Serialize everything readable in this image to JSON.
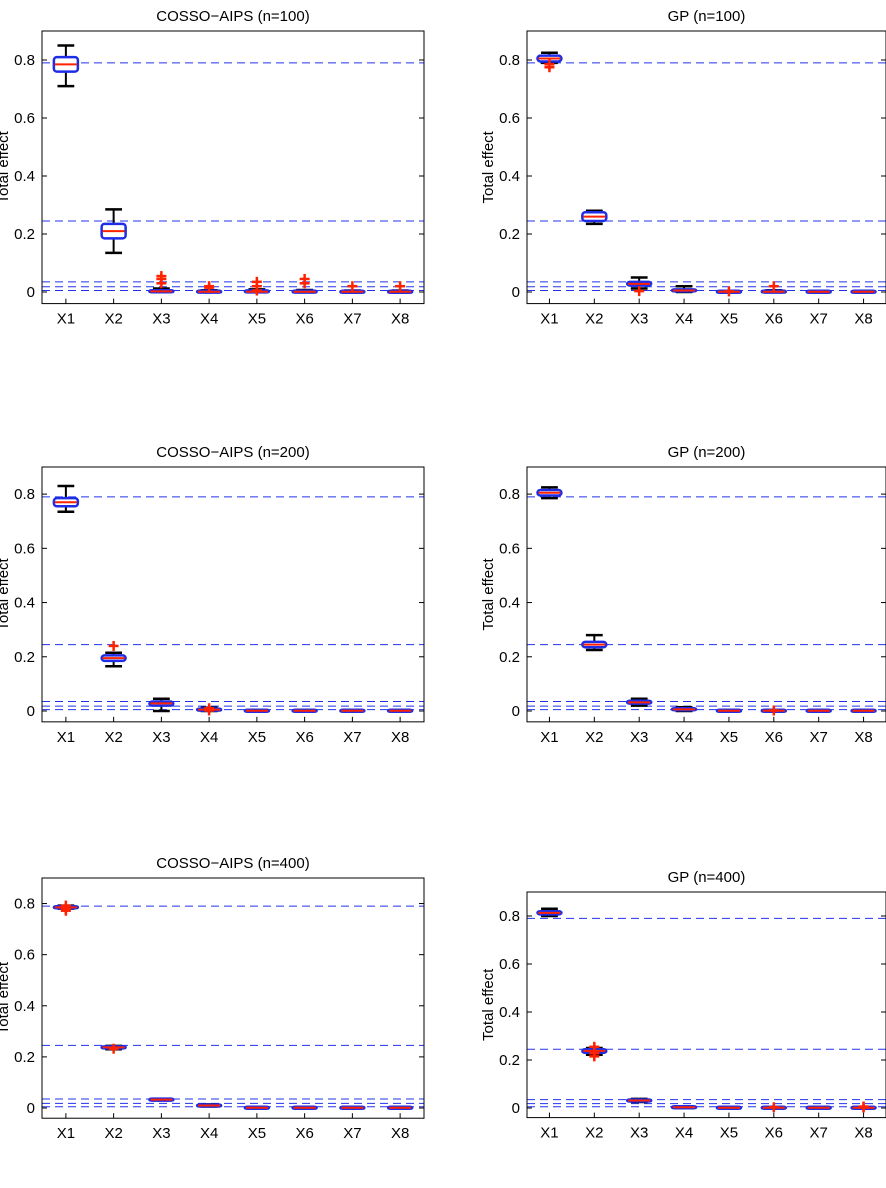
{
  "colors": {
    "box": "#1f2ee6",
    "median": "#ff2200",
    "whisker": "#000000",
    "outlier": "#ff2200",
    "reference": "#2233ee",
    "axis": "#000000"
  },
  "chart_data": [
    {
      "type": "box",
      "title": "COSSO−AIPS (n=100)",
      "ylabel": "Total effect",
      "categories": [
        "X1",
        "X2",
        "X3",
        "X4",
        "X5",
        "X6",
        "X7",
        "X8"
      ],
      "ylim": [
        -0.04,
        0.9
      ],
      "yticks": [
        "0",
        "0.2",
        "0.4",
        "0.6",
        "0.8"
      ],
      "reference_lines": [
        0.79,
        0.245,
        0.035,
        0.018,
        0.005
      ],
      "boxes": [
        {
          "min": 0.71,
          "q1": 0.76,
          "median": 0.785,
          "q3": 0.81,
          "max": 0.85,
          "outliers": []
        },
        {
          "min": 0.135,
          "q1": 0.185,
          "median": 0.21,
          "q3": 0.235,
          "max": 0.285,
          "outliers": []
        },
        {
          "min": 0.0,
          "q1": 0.0,
          "median": 0.002,
          "q3": 0.005,
          "max": 0.012,
          "outliers": [
            0.03,
            0.045,
            0.055
          ]
        },
        {
          "min": 0.0,
          "q1": 0.0,
          "median": 0.001,
          "q3": 0.003,
          "max": 0.006,
          "outliers": [
            0.015,
            0.02
          ]
        },
        {
          "min": 0.0,
          "q1": 0.0,
          "median": 0.001,
          "q3": 0.004,
          "max": 0.009,
          "outliers": [
            0.005,
            0.02,
            0.035
          ]
        },
        {
          "min": 0.0,
          "q1": 0.0,
          "median": 0.001,
          "q3": 0.003,
          "max": 0.007,
          "outliers": [
            0.03,
            0.045
          ]
        },
        {
          "min": 0.0,
          "q1": 0.0,
          "median": 0.001,
          "q3": 0.002,
          "max": 0.005,
          "outliers": [
            0.02
          ]
        },
        {
          "min": 0.0,
          "q1": 0.0,
          "median": 0.001,
          "q3": 0.002,
          "max": 0.005,
          "outliers": [
            0.02
          ]
        }
      ]
    },
    {
      "type": "box",
      "title": "GP (n=100)",
      "ylabel": "Total effect",
      "categories": [
        "X1",
        "X2",
        "X3",
        "X4",
        "X5",
        "X6",
        "X7",
        "X8"
      ],
      "ylim": [
        -0.04,
        0.9
      ],
      "yticks": [
        "0",
        "0.2",
        "0.4",
        "0.6",
        "0.8"
      ],
      "reference_lines": [
        0.79,
        0.245,
        0.035,
        0.018,
        0.005
      ],
      "boxes": [
        {
          "min": 0.79,
          "q1": 0.795,
          "median": 0.805,
          "q3": 0.815,
          "max": 0.825,
          "outliers": [
            0.775,
            0.785
          ]
        },
        {
          "min": 0.235,
          "q1": 0.245,
          "median": 0.26,
          "q3": 0.275,
          "max": 0.28,
          "outliers": []
        },
        {
          "min": 0.012,
          "q1": 0.022,
          "median": 0.028,
          "q3": 0.035,
          "max": 0.05,
          "outliers": [
            0.003
          ]
        },
        {
          "min": 0.0,
          "q1": 0.002,
          "median": 0.005,
          "q3": 0.009,
          "max": 0.02,
          "outliers": []
        },
        {
          "min": 0.0,
          "q1": 0.0,
          "median": 0.001,
          "q3": 0.002,
          "max": 0.004,
          "outliers": [
            0.002
          ]
        },
        {
          "min": 0.0,
          "q1": 0.0,
          "median": 0.001,
          "q3": 0.003,
          "max": 0.006,
          "outliers": [
            0.02
          ]
        },
        {
          "min": 0.0,
          "q1": 0.0,
          "median": 0.001,
          "q3": 0.002,
          "max": 0.003,
          "outliers": []
        },
        {
          "min": 0.0,
          "q1": 0.0,
          "median": 0.001,
          "q3": 0.002,
          "max": 0.003,
          "outliers": []
        }
      ]
    },
    {
      "type": "box",
      "title": "COSSO−AIPS (n=200)",
      "ylabel": "Total effect",
      "categories": [
        "X1",
        "X2",
        "X3",
        "X4",
        "X5",
        "X6",
        "X7",
        "X8"
      ],
      "ylim": [
        -0.04,
        0.9
      ],
      "yticks": [
        "0",
        "0.2",
        "0.4",
        "0.6",
        "0.8"
      ],
      "reference_lines": [
        0.79,
        0.245,
        0.035,
        0.018,
        0.005
      ],
      "boxes": [
        {
          "min": 0.735,
          "q1": 0.755,
          "median": 0.77,
          "q3": 0.785,
          "max": 0.83,
          "outliers": []
        },
        {
          "min": 0.165,
          "q1": 0.185,
          "median": 0.195,
          "q3": 0.205,
          "max": 0.215,
          "outliers": [
            0.24
          ]
        },
        {
          "min": 0.0,
          "q1": 0.02,
          "median": 0.028,
          "q3": 0.035,
          "max": 0.045,
          "outliers": []
        },
        {
          "min": 0.0,
          "q1": 0.002,
          "median": 0.005,
          "q3": 0.008,
          "max": 0.012,
          "outliers": [
            0.002,
            0.01
          ]
        },
        {
          "min": 0.0,
          "q1": 0.0,
          "median": 0.001,
          "q3": 0.002,
          "max": 0.003,
          "outliers": []
        },
        {
          "min": 0.0,
          "q1": 0.0,
          "median": 0.001,
          "q3": 0.002,
          "max": 0.003,
          "outliers": []
        },
        {
          "min": 0.0,
          "q1": 0.0,
          "median": 0.001,
          "q3": 0.002,
          "max": 0.003,
          "outliers": []
        },
        {
          "min": 0.0,
          "q1": 0.0,
          "median": 0.001,
          "q3": 0.002,
          "max": 0.003,
          "outliers": []
        }
      ]
    },
    {
      "type": "box",
      "title": "GP (n=200)",
      "ylabel": "Total effect",
      "categories": [
        "X1",
        "X2",
        "X3",
        "X4",
        "X5",
        "X6",
        "X7",
        "X8"
      ],
      "ylim": [
        -0.04,
        0.9
      ],
      "yticks": [
        "0",
        "0.2",
        "0.4",
        "0.6",
        "0.8"
      ],
      "reference_lines": [
        0.79,
        0.245,
        0.035,
        0.018,
        0.005
      ],
      "boxes": [
        {
          "min": 0.785,
          "q1": 0.795,
          "median": 0.805,
          "q3": 0.815,
          "max": 0.825,
          "outliers": []
        },
        {
          "min": 0.225,
          "q1": 0.235,
          "median": 0.245,
          "q3": 0.255,
          "max": 0.28,
          "outliers": []
        },
        {
          "min": 0.02,
          "q1": 0.027,
          "median": 0.032,
          "q3": 0.038,
          "max": 0.045,
          "outliers": []
        },
        {
          "min": 0.0,
          "q1": 0.003,
          "median": 0.006,
          "q3": 0.01,
          "max": 0.014,
          "outliers": []
        },
        {
          "min": 0.0,
          "q1": 0.0,
          "median": 0.001,
          "q3": 0.002,
          "max": 0.003,
          "outliers": []
        },
        {
          "min": 0.0,
          "q1": 0.0,
          "median": 0.001,
          "q3": 0.002,
          "max": 0.003,
          "outliers": [
            0.002
          ]
        },
        {
          "min": 0.0,
          "q1": 0.0,
          "median": 0.001,
          "q3": 0.002,
          "max": 0.003,
          "outliers": []
        },
        {
          "min": 0.0,
          "q1": 0.0,
          "median": 0.001,
          "q3": 0.002,
          "max": 0.003,
          "outliers": []
        }
      ]
    },
    {
      "type": "box",
      "title": "COSSO−AIPS (n=400)",
      "ylabel": "Total effect",
      "categories": [
        "X1",
        "X2",
        "X3",
        "X4",
        "X5",
        "X6",
        "X7",
        "X8"
      ],
      "ylim": [
        -0.04,
        0.9
      ],
      "yticks": [
        "0",
        "0.2",
        "0.4",
        "0.6",
        "0.8"
      ],
      "reference_lines": [
        0.79,
        0.245,
        0.035,
        0.018,
        0.005
      ],
      "boxes": [
        {
          "min": 0.78,
          "q1": 0.782,
          "median": 0.785,
          "q3": 0.789,
          "max": 0.792,
          "outliers": [
            0.772,
            0.778,
            0.792
          ]
        },
        {
          "min": 0.23,
          "q1": 0.234,
          "median": 0.237,
          "q3": 0.24,
          "max": 0.243,
          "outliers": [
            0.232
          ]
        },
        {
          "min": 0.03,
          "q1": 0.031,
          "median": 0.033,
          "q3": 0.035,
          "max": 0.036,
          "outliers": []
        },
        {
          "min": 0.006,
          "q1": 0.008,
          "median": 0.01,
          "q3": 0.012,
          "max": 0.014,
          "outliers": []
        },
        {
          "min": 0.0,
          "q1": 0.0,
          "median": 0.001,
          "q3": 0.002,
          "max": 0.003,
          "outliers": []
        },
        {
          "min": 0.0,
          "q1": 0.0,
          "median": 0.001,
          "q3": 0.002,
          "max": 0.003,
          "outliers": []
        },
        {
          "min": 0.0,
          "q1": 0.0,
          "median": 0.001,
          "q3": 0.002,
          "max": 0.003,
          "outliers": []
        },
        {
          "min": 0.0,
          "q1": 0.0,
          "median": 0.001,
          "q3": 0.002,
          "max": 0.003,
          "outliers": []
        }
      ]
    },
    {
      "type": "box",
      "title": "GP (n=400)",
      "ylabel": "Total effect",
      "categories": [
        "X1",
        "X2",
        "X3",
        "X4",
        "X5",
        "X6",
        "X7",
        "X8"
      ],
      "ylim": [
        -0.04,
        0.9
      ],
      "yticks": [
        "0",
        "0.2",
        "0.4",
        "0.6",
        "0.8"
      ],
      "reference_lines": [
        0.79,
        0.245,
        0.035,
        0.018,
        0.005
      ],
      "boxes": [
        {
          "min": 0.8,
          "q1": 0.807,
          "median": 0.813,
          "q3": 0.82,
          "max": 0.83,
          "outliers": []
        },
        {
          "min": 0.222,
          "q1": 0.23,
          "median": 0.238,
          "q3": 0.245,
          "max": 0.25,
          "outliers": [
            0.215,
            0.228,
            0.255
          ]
        },
        {
          "min": 0.025,
          "q1": 0.028,
          "median": 0.031,
          "q3": 0.034,
          "max": 0.038,
          "outliers": []
        },
        {
          "min": 0.0,
          "q1": 0.001,
          "median": 0.003,
          "q3": 0.005,
          "max": 0.007,
          "outliers": []
        },
        {
          "min": 0.0,
          "q1": 0.0,
          "median": 0.001,
          "q3": 0.002,
          "max": 0.003,
          "outliers": []
        },
        {
          "min": 0.0,
          "q1": 0.0,
          "median": 0.001,
          "q3": 0.002,
          "max": 0.004,
          "outliers": [
            0.003
          ]
        },
        {
          "min": 0.0,
          "q1": 0.0,
          "median": 0.001,
          "q3": 0.002,
          "max": 0.003,
          "outliers": []
        },
        {
          "min": 0.0,
          "q1": 0.0,
          "median": 0.001,
          "q3": 0.002,
          "max": 0.003,
          "outliers": [
            0.002,
            0.006
          ]
        }
      ]
    }
  ]
}
